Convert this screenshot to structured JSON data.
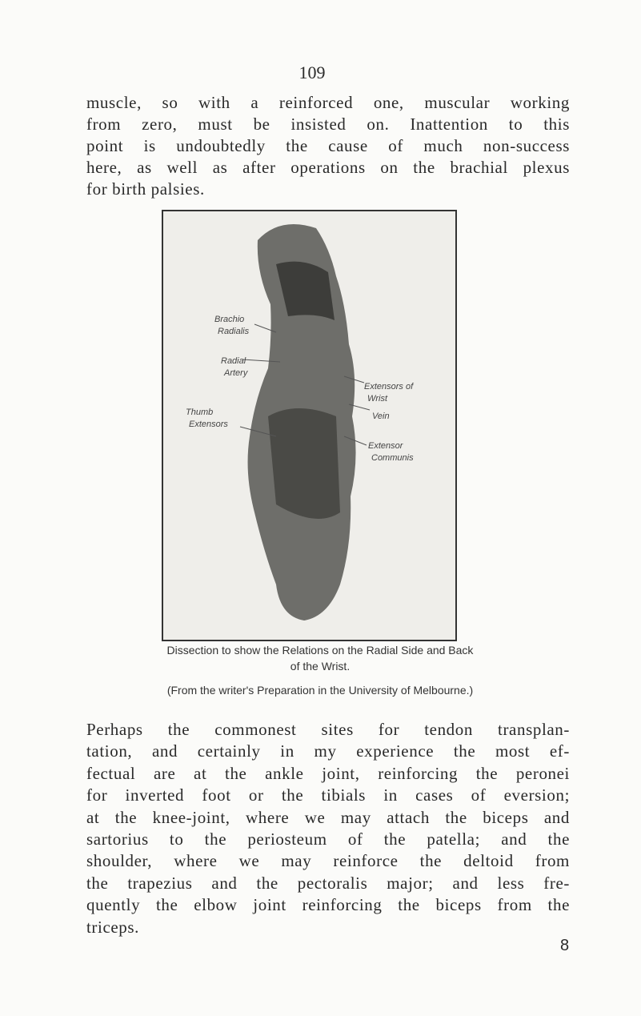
{
  "page_number": "109",
  "paragraph_1": [
    "muscle, so with a reinforced one, muscular working",
    "from zero, must be insisted on. Inattention to this",
    "point is undoubtedly the cause of much non-success",
    "here, as well as after operations on the brachial plexus",
    "for birth palsies."
  ],
  "figure": {
    "labels": [
      {
        "lines": [
          "Brachio",
          "Radialis"
        ]
      },
      {
        "lines": [
          "Radial",
          "Artery"
        ]
      },
      {
        "lines": [
          "Thumb",
          "Extensors"
        ]
      },
      {
        "lines": [
          "Extensors of",
          "Wrist"
        ]
      },
      {
        "lines": [
          "Vein"
        ]
      },
      {
        "lines": [
          "Extensor",
          "Communis"
        ]
      }
    ],
    "caption": [
      "Dissection to show the Relations on the Radial Side and Back",
      "of the Wrist."
    ],
    "source": "(From the writer's Preparation in the University of Melbourne.)"
  },
  "paragraph_2": [
    "Perhaps the commonest sites for tendon transplan-",
    "tation, and certainly in my experience the most ef-",
    "fectual are at the ankle joint, reinforcing the peronei",
    "for inverted foot or the tibials in cases of eversion;",
    "at the knee-joint, where we may attach the biceps and",
    "sartorius to the periosteum of the patella; and the",
    "shoulder, where we may reinforce the deltoid from",
    "the trapezius and the pectoralis major; and less fre-",
    "quently the elbow joint reinforcing the biceps from the",
    "triceps."
  ],
  "signature": "8"
}
